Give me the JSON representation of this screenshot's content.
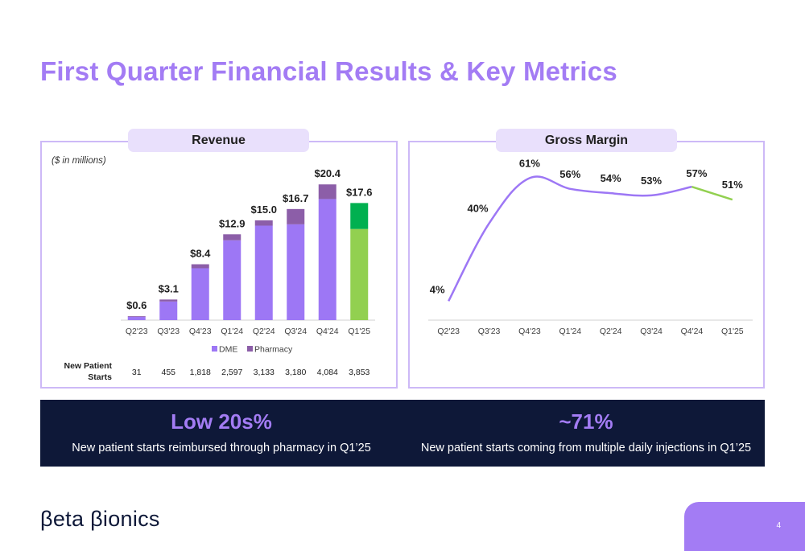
{
  "page": {
    "title": "First Quarter Financial Results & Key Metrics",
    "page_number": "4",
    "logo_text": "βeta βionics"
  },
  "revenue_panel": {
    "header": "Revenue",
    "units_note": "($ in millions)",
    "nps_label_line1": "New Patient",
    "nps_label_line2": "Starts"
  },
  "margin_panel": {
    "header": "Gross Margin"
  },
  "kpis": [
    {
      "value": "Low 20s%",
      "description": "New patient starts reimbursed through pharmacy in Q1’25"
    },
    {
      "value": "~71%",
      "description": "New patient starts coming from multiple daily injections in Q1’25"
    }
  ],
  "colors": {
    "accent": "#a37cf4",
    "dme": "#9d77f5",
    "pharmacy": "#8c5ea8",
    "dme_highlight": "#92d050",
    "pharmacy_highlight": "#00b050",
    "banner": "#0e1838"
  },
  "chart_data": [
    {
      "type": "bar",
      "title": "Revenue",
      "stacked": true,
      "categories": [
        "Q2'23",
        "Q3'23",
        "Q4'23",
        "Q1'24",
        "Q2'24",
        "Q3'24",
        "Q4'24",
        "Q1'25"
      ],
      "series": [
        {
          "name": "DME",
          "values": [
            0.5,
            2.8,
            7.8,
            12.0,
            14.2,
            14.4,
            18.2,
            13.7
          ]
        },
        {
          "name": "Pharmacy",
          "values": [
            0.1,
            0.3,
            0.6,
            0.9,
            0.8,
            2.3,
            2.2,
            3.9
          ]
        }
      ],
      "totals": [
        0.6,
        3.1,
        8.4,
        12.9,
        15.0,
        16.7,
        20.4,
        17.6
      ],
      "total_labels": [
        "$0.6",
        "$3.1",
        "$8.4",
        "$12.9",
        "$15.0",
        "$16.7",
        "$20.4",
        "$17.6"
      ],
      "highlight_category": "Q1'25",
      "legend": [
        "DME",
        "Pharmacy"
      ],
      "legend_position": "bottom",
      "ylim": [
        0,
        22
      ],
      "grid": false,
      "new_patient_starts": [
        "31",
        "455",
        "1,818",
        "2,597",
        "3,133",
        "3,180",
        "4,084",
        "3,853"
      ]
    },
    {
      "type": "line",
      "title": "Gross Margin",
      "categories": [
        "Q2'23",
        "Q3'23",
        "Q4'23",
        "Q1'24",
        "Q2'24",
        "Q3'24",
        "Q4'24",
        "Q1'25"
      ],
      "values": [
        4,
        40,
        61,
        56,
        54,
        53,
        57,
        51
      ],
      "value_labels": [
        "4%",
        "40%",
        "61%",
        "56%",
        "54%",
        "53%",
        "57%",
        "51%"
      ],
      "highlight_category": "Q1'25",
      "ylim": [
        0,
        66
      ],
      "grid": false
    }
  ]
}
